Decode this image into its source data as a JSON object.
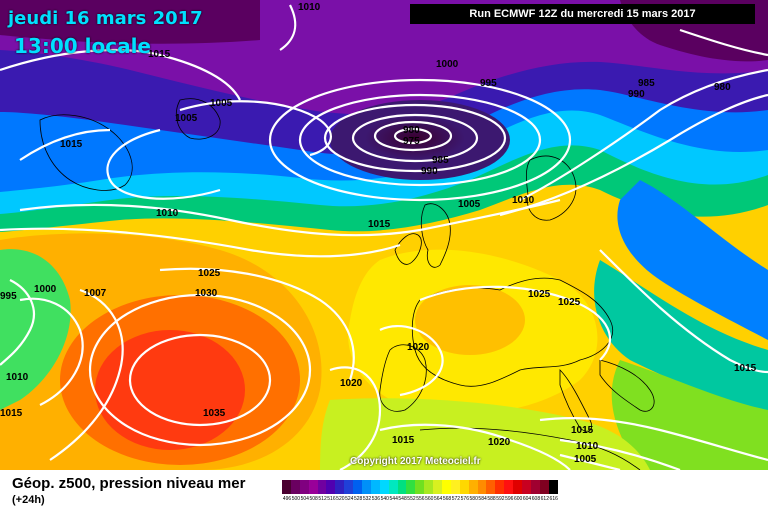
{
  "header": {
    "date": "jeudi 16 mars 2017",
    "time": "13:00 locale",
    "run": "Run ECMWF 12Z du mercredi 15 mars 2017"
  },
  "footer": {
    "title": "Géop. z500, pression niveau mer",
    "subtitle": "(+24h)",
    "copyright": "Copyright 2017 Meteociel.fr"
  },
  "legend": {
    "values": [
      "496",
      "500",
      "504",
      "508",
      "512",
      "516",
      "520",
      "524",
      "528",
      "532",
      "536",
      "540",
      "544",
      "548",
      "552",
      "556",
      "560",
      "564",
      "568",
      "572",
      "576",
      "580",
      "584",
      "588",
      "592",
      "596",
      "600",
      "604",
      "608",
      "612",
      "616"
    ],
    "colors": [
      "#4a0030",
      "#6a0060",
      "#800080",
      "#990099",
      "#7000a0",
      "#5000b0",
      "#3020c0",
      "#2040d8",
      "#0060f0",
      "#0090f8",
      "#00b8ff",
      "#00d8ff",
      "#00e8c0",
      "#00e080",
      "#30e040",
      "#70e020",
      "#a8e820",
      "#d8f020",
      "#ffff00",
      "#fff020",
      "#ffd800",
      "#ffb000",
      "#ff8c00",
      "#ff6000",
      "#ff3000",
      "#ff1010",
      "#e00000",
      "#c80020",
      "#a00030",
      "#800020",
      "#000000"
    ]
  },
  "isobars": [
    {
      "value": "1010",
      "id": "iso-1010-top"
    },
    {
      "value": "1015",
      "id": "iso-1015-nw"
    },
    {
      "value": "1005",
      "id": "iso-1005-a"
    },
    {
      "value": "1005",
      "id": "iso-1005-b"
    },
    {
      "value": "1015",
      "id": "iso-1015-w"
    },
    {
      "value": "1000",
      "id": "iso-1000-a"
    },
    {
      "value": "995",
      "id": "iso-995"
    },
    {
      "value": "980",
      "id": "iso-980"
    },
    {
      "value": "975",
      "id": "iso-975"
    },
    {
      "value": "985",
      "id": "iso-985"
    },
    {
      "value": "990",
      "id": "iso-990"
    },
    {
      "value": "1005",
      "id": "iso-1005-c"
    },
    {
      "value": "1010",
      "id": "iso-1010-b"
    },
    {
      "value": "985",
      "id": "iso-985-ne"
    },
    {
      "value": "990",
      "id": "iso-990-ne"
    },
    {
      "value": "980",
      "id": "iso-980-ne"
    },
    {
      "value": "1010",
      "id": "iso-1010-c"
    },
    {
      "value": "1015",
      "id": "iso-1015-mid"
    },
    {
      "value": "1025",
      "id": "iso-1025-a"
    },
    {
      "value": "1030",
      "id": "iso-1030"
    },
    {
      "value": "995",
      "id": "iso-995-w"
    },
    {
      "value": "1000",
      "id": "iso-1000-w"
    },
    {
      "value": "1007",
      "id": "iso-1007"
    },
    {
      "value": "1025",
      "id": "iso-1025-b"
    },
    {
      "value": "1025",
      "id": "iso-1025-c"
    },
    {
      "value": "1020",
      "id": "iso-1020-a"
    },
    {
      "value": "1010",
      "id": "iso-1010-d"
    },
    {
      "value": "1020",
      "id": "iso-1020-b"
    },
    {
      "value": "1035",
      "id": "iso-1035"
    },
    {
      "value": "1015",
      "id": "iso-1015-sw"
    },
    {
      "value": "1015",
      "id": "iso-1015-s"
    },
    {
      "value": "1020",
      "id": "iso-1020-c"
    },
    {
      "value": "1015",
      "id": "iso-1015-se"
    },
    {
      "value": "1010",
      "id": "iso-1010-e"
    },
    {
      "value": "1005",
      "id": "iso-1005-d"
    },
    {
      "value": "1015",
      "id": "iso-1015-e"
    }
  ]
}
